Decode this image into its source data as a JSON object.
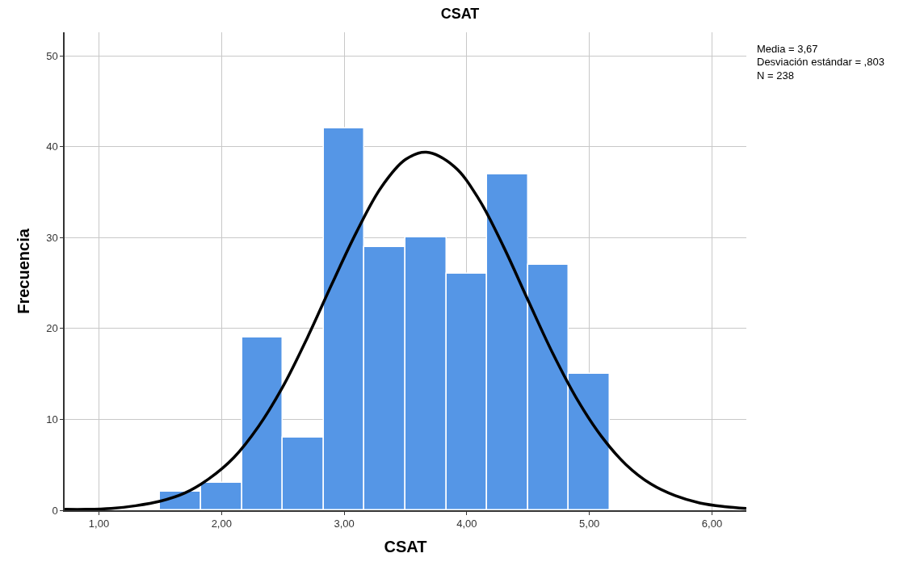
{
  "chart_data": {
    "type": "histogram",
    "title": "CSAT",
    "xlabel": "CSAT",
    "ylabel": "Frecuencia",
    "bins": [
      1.5,
      1.833,
      2.167,
      2.5,
      2.833,
      3.167,
      3.5,
      3.833,
      4.167,
      4.5,
      4.833,
      5.167
    ],
    "values": [
      2,
      3,
      19,
      8,
      42,
      29,
      30,
      26,
      37,
      27,
      15
    ],
    "color": "#5596e6",
    "series": [
      {
        "type": "line",
        "color": "#000000",
        "x": [
          0.72,
          0.9,
          1.1,
          1.3,
          1.5,
          1.7,
          1.9,
          2.1,
          2.3,
          2.5,
          2.7,
          2.9,
          3.1,
          3.3,
          3.5,
          3.67,
          3.9,
          4.1,
          4.3,
          4.5,
          4.7,
          4.9,
          5.1,
          5.3,
          5.5,
          5.7,
          5.9,
          6.1,
          6.28
        ],
        "values": [
          0.1,
          0.1,
          0.2,
          0.5,
          1.0,
          1.9,
          3.5,
          5.8,
          9.2,
          13.6,
          19.0,
          24.9,
          30.6,
          35.5,
          38.6,
          39.4,
          37.8,
          34.2,
          29.0,
          23.1,
          17.3,
          12.2,
          8.1,
          5.0,
          2.9,
          1.6,
          0.8,
          0.4,
          0.2
        ]
      }
    ],
    "xlim": [
      0.72,
      6.28
    ],
    "xticks": [
      {
        "value": 1,
        "label": "1,00"
      },
      {
        "value": 2,
        "label": "2,00"
      },
      {
        "value": 3,
        "label": "3,00"
      },
      {
        "value": 4,
        "label": "4,00"
      },
      {
        "value": 5,
        "label": "5,00"
      },
      {
        "value": 6,
        "label": "6,00"
      }
    ],
    "ylim": [
      0,
      52.6
    ],
    "yticks": [
      0,
      10,
      20,
      30,
      40,
      50
    ],
    "grid": true,
    "annotations": [
      "Media = 3,67",
      "Desviación estándar = ,803",
      "N = 238"
    ]
  }
}
